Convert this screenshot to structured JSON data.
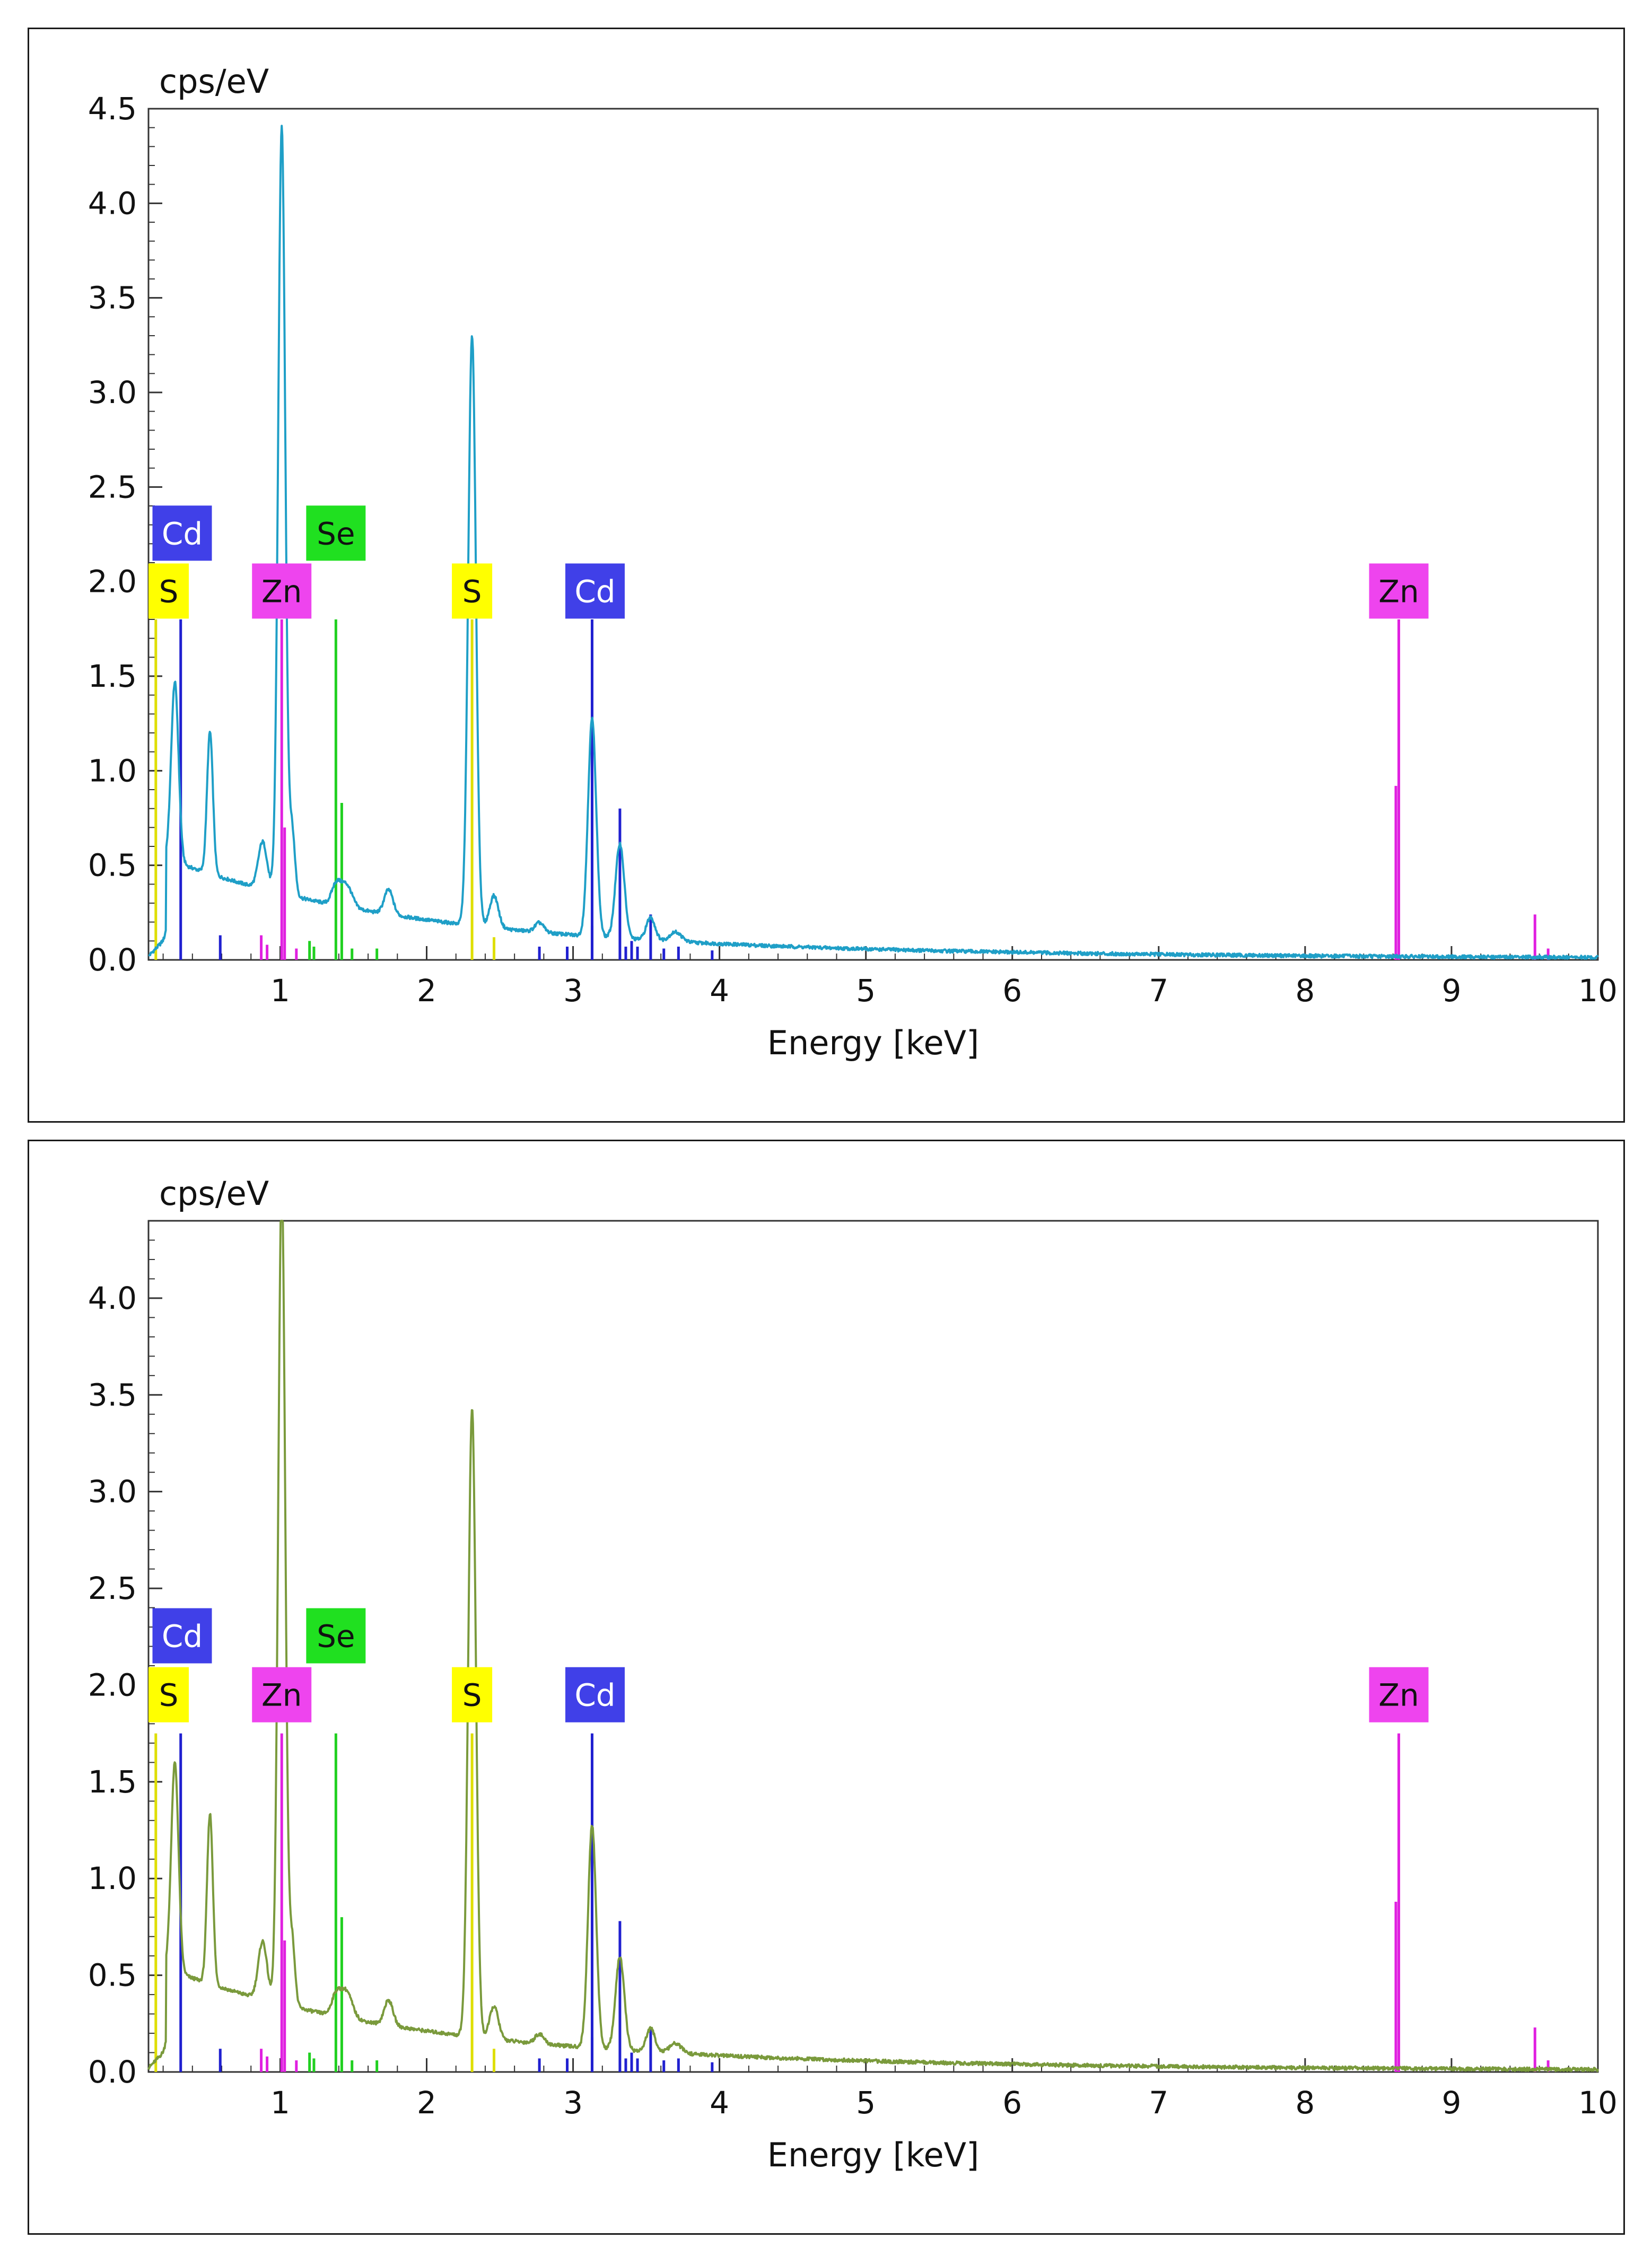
{
  "chart_data": [
    {
      "type": "line",
      "title": "",
      "ylabel": "cps/eV",
      "xlabel": "Energy [keV]",
      "xlim": [
        0.1,
        10
      ],
      "ylim": [
        0,
        4.5
      ],
      "x_ticks": [
        1,
        2,
        3,
        4,
        5,
        6,
        7,
        8,
        9,
        10
      ],
      "x_tick_labels": [
        "1",
        "2",
        "3",
        "4",
        "5",
        "6",
        "7",
        "8",
        "9",
        "10"
      ],
      "y_ticks": [
        0,
        0.5,
        1,
        1.5,
        2,
        2.5,
        3,
        3.5,
        4,
        4.5
      ],
      "y_tick_labels": [
        "0.0",
        "0.5",
        "1.0",
        "1.5",
        "2.0",
        "2.5",
        "3.0",
        "3.5",
        "4.0",
        "4.5"
      ],
      "spectrum_color": "#1f9fc7",
      "peaks": [
        {
          "energy": 0.28,
          "height": 0.95,
          "width": 0.025
        },
        {
          "energy": 0.52,
          "height": 0.75,
          "width": 0.02
        },
        {
          "energy": 0.88,
          "height": 0.25,
          "width": 0.03
        },
        {
          "energy": 1.01,
          "height": 4.05,
          "width": 0.024
        },
        {
          "energy": 1.08,
          "height": 0.35,
          "width": 0.02
        },
        {
          "energy": 1.38,
          "height": 0.1,
          "width": 0.03
        },
        {
          "energy": 1.45,
          "height": 0.12,
          "width": 0.04
        },
        {
          "energy": 1.74,
          "height": 0.13,
          "width": 0.03
        },
        {
          "energy": 2.31,
          "height": 3.12,
          "width": 0.026
        },
        {
          "energy": 2.46,
          "height": 0.17,
          "width": 0.03
        },
        {
          "energy": 2.77,
          "height": 0.05,
          "width": 0.03
        },
        {
          "energy": 3.13,
          "height": 1.15,
          "width": 0.028
        },
        {
          "energy": 3.32,
          "height": 0.5,
          "width": 0.03
        },
        {
          "energy": 3.53,
          "height": 0.12,
          "width": 0.03
        },
        {
          "energy": 3.7,
          "height": 0.05,
          "width": 0.04
        }
      ],
      "line_marks": [
        {
          "element": "S",
          "energy": 0.15,
          "height": 1.8,
          "color": "#dede00"
        },
        {
          "element": "S",
          "energy": 2.31,
          "height": 1.8,
          "color": "#dede00"
        },
        {
          "element": "S",
          "energy": 2.46,
          "height": 0.12,
          "color": "#dede00"
        },
        {
          "element": "Cd",
          "energy": 0.32,
          "height": 1.8,
          "color": "#2020d0"
        },
        {
          "element": "Cd",
          "energy": 0.59,
          "height": 0.13,
          "color": "#2020d0"
        },
        {
          "element": "Cd",
          "energy": 2.77,
          "height": 0.07,
          "color": "#2020d0"
        },
        {
          "element": "Cd",
          "energy": 2.96,
          "height": 0.07,
          "color": "#2020d0"
        },
        {
          "element": "Cd",
          "energy": 3.13,
          "height": 1.8,
          "color": "#2020d0"
        },
        {
          "element": "Cd",
          "energy": 3.13,
          "height": 0.18,
          "color": "#2020d0"
        },
        {
          "element": "Cd",
          "energy": 3.32,
          "height": 0.8,
          "color": "#2020d0"
        },
        {
          "element": "Cd",
          "energy": 3.36,
          "height": 0.07,
          "color": "#2020d0"
        },
        {
          "element": "Cd",
          "energy": 3.4,
          "height": 0.1,
          "color": "#2020d0"
        },
        {
          "element": "Cd",
          "energy": 3.44,
          "height": 0.07,
          "color": "#2020d0"
        },
        {
          "element": "Cd",
          "energy": 3.53,
          "height": 0.24,
          "color": "#2020d0"
        },
        {
          "element": "Cd",
          "energy": 3.62,
          "height": 0.06,
          "color": "#2020d0"
        },
        {
          "element": "Cd",
          "energy": 3.72,
          "height": 0.07,
          "color": "#2020d0"
        },
        {
          "element": "Cd",
          "energy": 3.95,
          "height": 0.05,
          "color": "#2020d0"
        },
        {
          "element": "Zn",
          "energy": 0.87,
          "height": 0.13,
          "color": "#e020e0"
        },
        {
          "element": "Zn",
          "energy": 0.91,
          "height": 0.08,
          "color": "#e020e0"
        },
        {
          "element": "Zn",
          "energy": 1.01,
          "height": 1.8,
          "color": "#e020e0"
        },
        {
          "element": "Zn",
          "energy": 1.03,
          "height": 0.7,
          "color": "#e020e0"
        },
        {
          "element": "Zn",
          "energy": 1.11,
          "height": 0.06,
          "color": "#e020e0"
        },
        {
          "element": "Zn",
          "energy": 8.62,
          "height": 0.92,
          "color": "#e020e0"
        },
        {
          "element": "Zn",
          "energy": 8.64,
          "height": 1.8,
          "color": "#e020e0"
        },
        {
          "element": "Zn",
          "energy": 9.57,
          "height": 0.24,
          "color": "#e020e0"
        },
        {
          "element": "Zn",
          "energy": 9.66,
          "height": 0.06,
          "color": "#e020e0"
        },
        {
          "element": "Se",
          "energy": 1.2,
          "height": 0.1,
          "color": "#20d020"
        },
        {
          "element": "Se",
          "energy": 1.23,
          "height": 0.07,
          "color": "#20d020"
        },
        {
          "element": "Se",
          "energy": 1.38,
          "height": 1.8,
          "color": "#20d020"
        },
        {
          "element": "Se",
          "energy": 1.42,
          "height": 0.83,
          "color": "#20d020"
        },
        {
          "element": "Se",
          "energy": 1.49,
          "height": 0.06,
          "color": "#20d020"
        },
        {
          "element": "Se",
          "energy": 1.66,
          "height": 0.06,
          "color": "#20d020"
        }
      ],
      "element_labels": [
        {
          "text": "Cd",
          "energy": 0.33,
          "level": "upper",
          "bg": "#4040e8",
          "fg": "#ffffff"
        },
        {
          "text": "Se",
          "energy": 1.38,
          "level": "upper",
          "bg": "#20e020",
          "fg": "#111111"
        },
        {
          "text": "S",
          "energy": 0.15,
          "level": "lower",
          "bg": "#ffff00",
          "fg": "#111111"
        },
        {
          "text": "Zn",
          "energy": 1.01,
          "level": "lower",
          "bg": "#ee44ee",
          "fg": "#111111"
        },
        {
          "text": "S",
          "energy": 2.31,
          "level": "lower",
          "bg": "#ffff00",
          "fg": "#111111"
        },
        {
          "text": "Cd",
          "energy": 3.15,
          "level": "lower",
          "bg": "#4040e8",
          "fg": "#ffffff"
        },
        {
          "text": "Zn",
          "energy": 8.64,
          "level": "lower",
          "bg": "#ee44ee",
          "fg": "#111111"
        }
      ]
    },
    {
      "type": "line",
      "title": "",
      "ylabel": "cps/eV",
      "xlabel": "Energy [keV]",
      "xlim": [
        0.1,
        10
      ],
      "ylim": [
        0,
        4.4
      ],
      "x_ticks": [
        1,
        2,
        3,
        4,
        5,
        6,
        7,
        8,
        9,
        10
      ],
      "x_tick_labels": [
        "1",
        "2",
        "3",
        "4",
        "5",
        "6",
        "7",
        "8",
        "9",
        "10"
      ],
      "y_ticks": [
        0,
        0.5,
        1,
        1.5,
        2,
        2.5,
        3,
        3.5,
        4
      ],
      "y_tick_labels": [
        "0.0",
        "0.5",
        "1.0",
        "1.5",
        "2.0",
        "2.5",
        "3.0",
        "3.5",
        "4.0"
      ],
      "spectrum_color": "#7a9a3c",
      "peaks": [
        {
          "energy": 0.28,
          "height": 1.08,
          "width": 0.025
        },
        {
          "energy": 0.52,
          "height": 0.88,
          "width": 0.02
        },
        {
          "energy": 0.88,
          "height": 0.3,
          "width": 0.03
        },
        {
          "energy": 1.01,
          "height": 4.25,
          "width": 0.024
        },
        {
          "energy": 1.08,
          "height": 0.35,
          "width": 0.02
        },
        {
          "energy": 1.38,
          "height": 0.1,
          "width": 0.03
        },
        {
          "energy": 1.45,
          "height": 0.14,
          "width": 0.04
        },
        {
          "energy": 1.74,
          "height": 0.13,
          "width": 0.03
        },
        {
          "energy": 2.31,
          "height": 3.25,
          "width": 0.026
        },
        {
          "energy": 2.46,
          "height": 0.17,
          "width": 0.03
        },
        {
          "energy": 2.77,
          "height": 0.05,
          "width": 0.03
        },
        {
          "energy": 3.13,
          "height": 1.15,
          "width": 0.028
        },
        {
          "energy": 3.32,
          "height": 0.48,
          "width": 0.03
        },
        {
          "energy": 3.53,
          "height": 0.12,
          "width": 0.03
        },
        {
          "energy": 3.7,
          "height": 0.05,
          "width": 0.04
        }
      ],
      "line_marks": [
        {
          "element": "S",
          "energy": 0.15,
          "height": 1.75,
          "color": "#dede00"
        },
        {
          "element": "S",
          "energy": 2.31,
          "height": 1.75,
          "color": "#dede00"
        },
        {
          "element": "S",
          "energy": 2.46,
          "height": 0.12,
          "color": "#dede00"
        },
        {
          "element": "Cd",
          "energy": 0.32,
          "height": 1.75,
          "color": "#2020d0"
        },
        {
          "element": "Cd",
          "energy": 0.59,
          "height": 0.12,
          "color": "#2020d0"
        },
        {
          "element": "Cd",
          "energy": 2.77,
          "height": 0.07,
          "color": "#2020d0"
        },
        {
          "element": "Cd",
          "energy": 2.96,
          "height": 0.07,
          "color": "#2020d0"
        },
        {
          "element": "Cd",
          "energy": 3.13,
          "height": 1.75,
          "color": "#2020d0"
        },
        {
          "element": "Cd",
          "energy": 3.13,
          "height": 0.18,
          "color": "#2020d0"
        },
        {
          "element": "Cd",
          "energy": 3.32,
          "height": 0.78,
          "color": "#2020d0"
        },
        {
          "element": "Cd",
          "energy": 3.36,
          "height": 0.07,
          "color": "#2020d0"
        },
        {
          "element": "Cd",
          "energy": 3.4,
          "height": 0.1,
          "color": "#2020d0"
        },
        {
          "element": "Cd",
          "energy": 3.44,
          "height": 0.07,
          "color": "#2020d0"
        },
        {
          "element": "Cd",
          "energy": 3.53,
          "height": 0.23,
          "color": "#2020d0"
        },
        {
          "element": "Cd",
          "energy": 3.62,
          "height": 0.06,
          "color": "#2020d0"
        },
        {
          "element": "Cd",
          "energy": 3.72,
          "height": 0.07,
          "color": "#2020d0"
        },
        {
          "element": "Cd",
          "energy": 3.95,
          "height": 0.05,
          "color": "#2020d0"
        },
        {
          "element": "Zn",
          "energy": 0.87,
          "height": 0.12,
          "color": "#e020e0"
        },
        {
          "element": "Zn",
          "energy": 0.91,
          "height": 0.08,
          "color": "#e020e0"
        },
        {
          "element": "Zn",
          "energy": 1.01,
          "height": 1.75,
          "color": "#e020e0"
        },
        {
          "element": "Zn",
          "energy": 1.03,
          "height": 0.68,
          "color": "#e020e0"
        },
        {
          "element": "Zn",
          "energy": 1.11,
          "height": 0.06,
          "color": "#e020e0"
        },
        {
          "element": "Zn",
          "energy": 8.62,
          "height": 0.88,
          "color": "#e020e0"
        },
        {
          "element": "Zn",
          "energy": 8.64,
          "height": 1.75,
          "color": "#e020e0"
        },
        {
          "element": "Zn",
          "energy": 9.57,
          "height": 0.23,
          "color": "#e020e0"
        },
        {
          "element": "Zn",
          "energy": 9.66,
          "height": 0.06,
          "color": "#e020e0"
        },
        {
          "element": "Se",
          "energy": 1.2,
          "height": 0.1,
          "color": "#20d020"
        },
        {
          "element": "Se",
          "energy": 1.23,
          "height": 0.07,
          "color": "#20d020"
        },
        {
          "element": "Se",
          "energy": 1.38,
          "height": 1.75,
          "color": "#20d020"
        },
        {
          "element": "Se",
          "energy": 1.42,
          "height": 0.8,
          "color": "#20d020"
        },
        {
          "element": "Se",
          "energy": 1.49,
          "height": 0.06,
          "color": "#20d020"
        },
        {
          "element": "Se",
          "energy": 1.66,
          "height": 0.06,
          "color": "#20d020"
        }
      ],
      "element_labels": [
        {
          "text": "Cd",
          "energy": 0.33,
          "level": "upper",
          "bg": "#4040e8",
          "fg": "#ffffff"
        },
        {
          "text": "Se",
          "energy": 1.38,
          "level": "upper",
          "bg": "#20e020",
          "fg": "#111111"
        },
        {
          "text": "S",
          "energy": 0.15,
          "level": "lower",
          "bg": "#ffff00",
          "fg": "#111111"
        },
        {
          "text": "Zn",
          "energy": 1.01,
          "level": "lower",
          "bg": "#ee44ee",
          "fg": "#111111"
        },
        {
          "text": "S",
          "energy": 2.31,
          "level": "lower",
          "bg": "#ffff00",
          "fg": "#111111"
        },
        {
          "text": "Cd",
          "energy": 3.15,
          "level": "lower",
          "bg": "#4040e8",
          "fg": "#ffffff"
        },
        {
          "text": "Zn",
          "energy": 8.64,
          "level": "lower",
          "bg": "#ee44ee",
          "fg": "#111111"
        }
      ]
    }
  ]
}
